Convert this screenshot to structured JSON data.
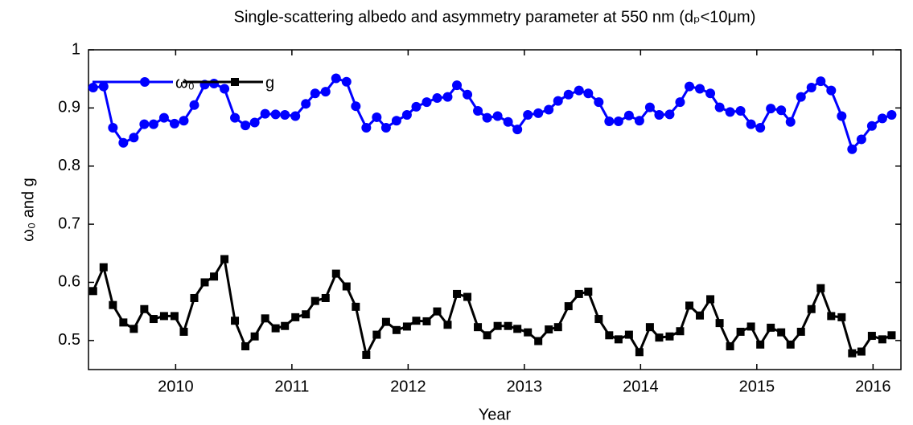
{
  "chart_data": {
    "type": "line",
    "title": "Single-scattering albedo and asymmetry parameter at 550 nm (dₚ<10μm)",
    "xlabel": "Year",
    "ylabel": "ω₀ and g",
    "x": [
      2009.29,
      2009.38,
      2009.46,
      2009.55,
      2009.64,
      2009.73,
      2009.81,
      2009.9,
      2009.99,
      2010.07,
      2010.16,
      2010.25,
      2010.33,
      2010.42,
      2010.51,
      2010.6,
      2010.68,
      2010.77,
      2010.86,
      2010.94,
      2011.03,
      2011.12,
      2011.2,
      2011.29,
      2011.38,
      2011.47,
      2011.55,
      2011.64,
      2011.73,
      2011.81,
      2011.9,
      2011.99,
      2012.07,
      2012.16,
      2012.25,
      2012.34,
      2012.42,
      2012.51,
      2012.6,
      2012.68,
      2012.77,
      2012.86,
      2012.94,
      2013.03,
      2013.12,
      2013.21,
      2013.29,
      2013.38,
      2013.47,
      2013.55,
      2013.64,
      2013.73,
      2013.81,
      2013.9,
      2013.99,
      2014.08,
      2014.16,
      2014.25,
      2014.34,
      2014.42,
      2014.51,
      2014.6,
      2014.68,
      2014.77,
      2014.86,
      2014.95,
      2015.03,
      2015.12,
      2015.21,
      2015.29,
      2015.38,
      2015.47,
      2015.55,
      2015.64,
      2015.73,
      2015.82,
      2015.9,
      2015.99,
      2016.08,
      2016.16
    ],
    "series": [
      {
        "name": "ω₀",
        "color": "#0000ff",
        "marker": "circle",
        "values": [
          0.935,
          0.937,
          0.866,
          0.84,
          0.849,
          0.872,
          0.872,
          0.883,
          0.873,
          0.878,
          0.905,
          0.94,
          0.942,
          0.933,
          0.883,
          0.87,
          0.875,
          0.89,
          0.889,
          0.888,
          0.886,
          0.907,
          0.925,
          0.928,
          0.951,
          0.945,
          0.903,
          0.866,
          0.884,
          0.866,
          0.878,
          0.888,
          0.902,
          0.91,
          0.917,
          0.919,
          0.939,
          0.923,
          0.895,
          0.883,
          0.886,
          0.876,
          0.863,
          0.888,
          0.891,
          0.897,
          0.912,
          0.923,
          0.93,
          0.925,
          0.91,
          0.877,
          0.877,
          0.887,
          0.878,
          0.901,
          0.888,
          0.889,
          0.91,
          0.937,
          0.933,
          0.925,
          0.901,
          0.893,
          0.895,
          0.872,
          0.866,
          0.899,
          0.896,
          0.876,
          0.919,
          0.935,
          0.946,
          0.93,
          0.886,
          0.829,
          0.846,
          0.869,
          0.882,
          0.888
        ]
      },
      {
        "name": "g",
        "color": "#000000",
        "marker": "square",
        "values": [
          0.585,
          0.626,
          0.561,
          0.531,
          0.52,
          0.554,
          0.537,
          0.542,
          0.542,
          0.515,
          0.573,
          0.6,
          0.61,
          0.64,
          0.534,
          0.49,
          0.507,
          0.538,
          0.521,
          0.525,
          0.54,
          0.545,
          0.568,
          0.573,
          0.615,
          0.593,
          0.558,
          0.475,
          0.51,
          0.532,
          0.518,
          0.524,
          0.534,
          0.533,
          0.55,
          0.527,
          0.58,
          0.575,
          0.523,
          0.509,
          0.525,
          0.525,
          0.52,
          0.514,
          0.499,
          0.519,
          0.523,
          0.559,
          0.58,
          0.584,
          0.537,
          0.509,
          0.502,
          0.51,
          0.48,
          0.523,
          0.505,
          0.507,
          0.516,
          0.56,
          0.543,
          0.571,
          0.53,
          0.49,
          0.515,
          0.524,
          0.493,
          0.522,
          0.514,
          0.493,
          0.515,
          0.554,
          0.59,
          0.542,
          0.54,
          0.478,
          0.481,
          0.508,
          0.502,
          0.509
        ]
      }
    ],
    "xlim": [
      2009.25,
      2016.24
    ],
    "xticks": [
      2010,
      2011,
      2012,
      2013,
      2014,
      2015,
      2016
    ],
    "ylim": [
      0.45,
      1
    ],
    "yticks": [
      0.5,
      0.6,
      0.7,
      0.8,
      0.9,
      1
    ],
    "grid": false,
    "legend": "upper left"
  }
}
